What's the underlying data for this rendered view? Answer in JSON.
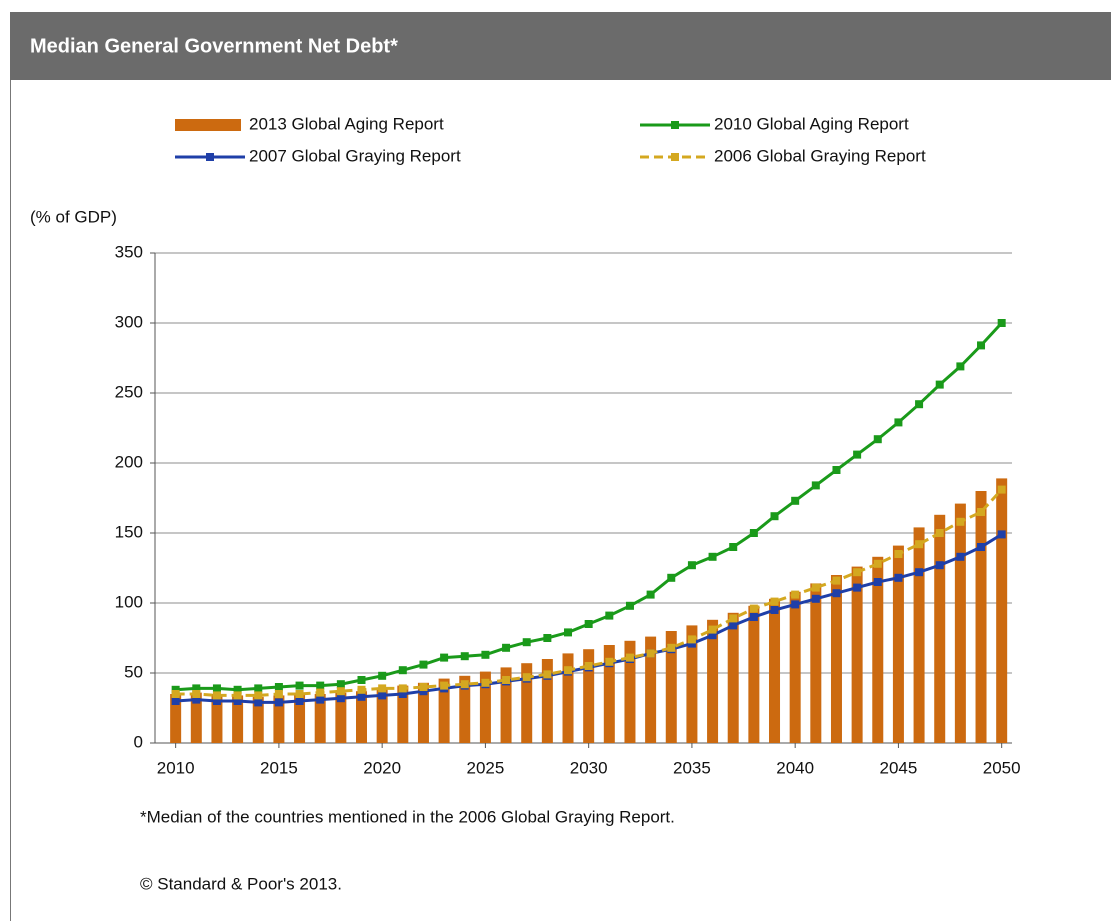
{
  "chart_data": {
    "type": "combo",
    "title": "Median General Government Net Debt*",
    "y_label": "(% of GDP)",
    "notes": [
      "*Median of the countries mentioned in the 2006 Global Graying Report.",
      "© Standard & Poor's 2013."
    ],
    "x": [
      2010,
      2011,
      2012,
      2013,
      2014,
      2015,
      2016,
      2017,
      2018,
      2019,
      2020,
      2021,
      2022,
      2023,
      2024,
      2025,
      2026,
      2027,
      2028,
      2029,
      2030,
      2031,
      2032,
      2033,
      2034,
      2035,
      2036,
      2037,
      2038,
      2039,
      2040,
      2041,
      2042,
      2043,
      2044,
      2045,
      2046,
      2047,
      2048,
      2049,
      2050
    ],
    "xlim": [
      2009,
      2050.5
    ],
    "xticks": [
      2010,
      2015,
      2020,
      2025,
      2030,
      2035,
      2040,
      2045,
      2050
    ],
    "ylim": [
      0,
      350
    ],
    "yticks": [
      0,
      50,
      100,
      150,
      200,
      250,
      300,
      350
    ],
    "grid": true,
    "series": [
      {
        "name": "2013 Global Aging Report",
        "type": "bar",
        "color": "#cc6a10",
        "values": [
          35,
          36,
          35,
          34,
          33,
          34,
          35,
          35,
          36,
          37,
          39,
          41,
          43,
          46,
          48,
          51,
          54,
          57,
          60,
          64,
          67,
          70,
          73,
          76,
          80,
          84,
          88,
          93,
          98,
          103,
          108,
          114,
          120,
          126,
          133,
          141,
          154,
          163,
          171,
          180,
          189
        ]
      },
      {
        "name": "2010 Global Aging Report",
        "type": "line",
        "color": "#1a9a1a",
        "dashed": false,
        "values": [
          38,
          39,
          39,
          38,
          39,
          40,
          41,
          41,
          42,
          45,
          48,
          52,
          56,
          61,
          62,
          63,
          68,
          72,
          75,
          79,
          85,
          91,
          98,
          106,
          118,
          127,
          133,
          140,
          150,
          162,
          173,
          184,
          195,
          206,
          217,
          229,
          242,
          256,
          269,
          284,
          300
        ]
      },
      {
        "name": "2007 Global Graying Report",
        "type": "line",
        "color": "#1f3fa8",
        "dashed": false,
        "values": [
          30,
          31,
          30,
          30,
          29,
          29,
          30,
          31,
          32,
          33,
          34,
          35,
          37,
          39,
          41,
          42,
          44,
          46,
          48,
          51,
          54,
          57,
          60,
          64,
          67,
          71,
          77,
          84,
          90,
          95,
          99,
          103,
          107,
          111,
          115,
          118,
          122,
          127,
          133,
          140,
          149
        ]
      },
      {
        "name": "2006 Global Graying Report",
        "type": "line",
        "color": "#d4a820",
        "dashed": true,
        "values": [
          35,
          35,
          34,
          34,
          34,
          35,
          35,
          36,
          37,
          38,
          39,
          39,
          40,
          41,
          42,
          43,
          45,
          47,
          49,
          52,
          55,
          58,
          61,
          64,
          68,
          74,
          81,
          89,
          96,
          101,
          106,
          111,
          116,
          122,
          128,
          135,
          142,
          150,
          158,
          165,
          181
        ]
      }
    ]
  }
}
